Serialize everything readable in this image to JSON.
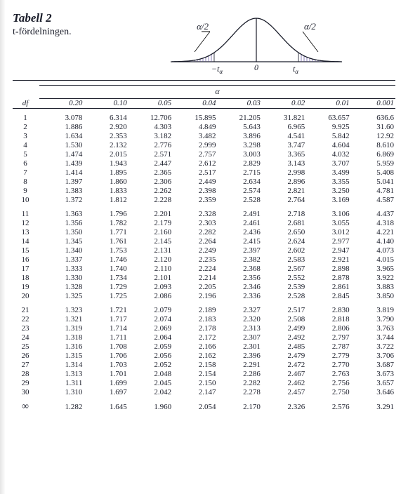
{
  "title": "Tabell 2",
  "subtitle": "t-fördelningen.",
  "diagram": {
    "tail_label": "α/2",
    "axis": {
      "center": "0",
      "left": "−t",
      "right": "t",
      "sub": "α"
    },
    "curve_color": "#1a1d2a",
    "fill_color": "#8a7fb8",
    "bg": "#ffffff"
  },
  "alpha_symbol": "α",
  "df_label": "df",
  "infinity": "∞",
  "alpha_levels": [
    "0.20",
    "0.10",
    "0.05",
    "0.04",
    "0.03",
    "0.02",
    "0.01",
    "0.001"
  ],
  "groups": [
    {
      "rows": [
        {
          "df": "1",
          "v": [
            "3.078",
            "6.314",
            "12.706",
            "15.895",
            "21.205",
            "31.821",
            "63.657",
            "636.6"
          ]
        },
        {
          "df": "2",
          "v": [
            "1.886",
            "2.920",
            "4.303",
            "4.849",
            "5.643",
            "6.965",
            "9.925",
            "31.60"
          ]
        },
        {
          "df": "3",
          "v": [
            "1.634",
            "2.353",
            "3.182",
            "3.482",
            "3.896",
            "4.541",
            "5.842",
            "12.92"
          ]
        },
        {
          "df": "4",
          "v": [
            "1.530",
            "2.132",
            "2.776",
            "2.999",
            "3.298",
            "3.747",
            "4.604",
            "8.610"
          ]
        },
        {
          "df": "5",
          "v": [
            "1.474",
            "2.015",
            "2.571",
            "2.757",
            "3.003",
            "3.365",
            "4.032",
            "6.869"
          ]
        },
        {
          "df": "6",
          "v": [
            "1.439",
            "1.943",
            "2.447",
            "2.612",
            "2.829",
            "3.143",
            "3.707",
            "5.959"
          ]
        },
        {
          "df": "7",
          "v": [
            "1.414",
            "1.895",
            "2.365",
            "2.517",
            "2.715",
            "2.998",
            "3.499",
            "5.408"
          ]
        },
        {
          "df": "8",
          "v": [
            "1.397",
            "1.860",
            "2.306",
            "2.449",
            "2.634",
            "2.896",
            "3.355",
            "5.041"
          ]
        },
        {
          "df": "9",
          "v": [
            "1.383",
            "1.833",
            "2.262",
            "2.398",
            "2.574",
            "2.821",
            "3.250",
            "4.781"
          ]
        },
        {
          "df": "10",
          "v": [
            "1.372",
            "1.812",
            "2.228",
            "2.359",
            "2.528",
            "2.764",
            "3.169",
            "4.587"
          ]
        }
      ]
    },
    {
      "rows": [
        {
          "df": "11",
          "v": [
            "1.363",
            "1.796",
            "2.201",
            "2.328",
            "2.491",
            "2.718",
            "3.106",
            "4.437"
          ]
        },
        {
          "df": "12",
          "v": [
            "1.356",
            "1.782",
            "2.179",
            "2.303",
            "2.461",
            "2.681",
            "3.055",
            "4.318"
          ]
        },
        {
          "df": "13",
          "v": [
            "1.350",
            "1.771",
            "2.160",
            "2.282",
            "2.436",
            "2.650",
            "3.012",
            "4.221"
          ]
        },
        {
          "df": "14",
          "v": [
            "1.345",
            "1.761",
            "2.145",
            "2.264",
            "2.415",
            "2.624",
            "2.977",
            "4.140"
          ]
        },
        {
          "df": "15",
          "v": [
            "1.340",
            "1.753",
            "2.131",
            "2.249",
            "2.397",
            "2.602",
            "2.947",
            "4.073"
          ]
        },
        {
          "df": "16",
          "v": [
            "1.337",
            "1.746",
            "2.120",
            "2.235",
            "2.382",
            "2.583",
            "2.921",
            "4.015"
          ]
        },
        {
          "df": "17",
          "v": [
            "1.333",
            "1.740",
            "2.110",
            "2.224",
            "2.368",
            "2.567",
            "2.898",
            "3.965"
          ]
        },
        {
          "df": "18",
          "v": [
            "1.330",
            "1.734",
            "2.101",
            "2.214",
            "2.356",
            "2.552",
            "2.878",
            "3.922"
          ]
        },
        {
          "df": "19",
          "v": [
            "1.328",
            "1.729",
            "2.093",
            "2.205",
            "2.346",
            "2.539",
            "2.861",
            "3.883"
          ]
        },
        {
          "df": "20",
          "v": [
            "1.325",
            "1.725",
            "2.086",
            "2.196",
            "2.336",
            "2.528",
            "2.845",
            "3.850"
          ]
        }
      ]
    },
    {
      "rows": [
        {
          "df": "21",
          "v": [
            "1.323",
            "1.721",
            "2.079",
            "2.189",
            "2.327",
            "2.517",
            "2.830",
            "3.819"
          ]
        },
        {
          "df": "22",
          "v": [
            "1.321",
            "1.717",
            "2.074",
            "2.183",
            "2.320",
            "2.508",
            "2.818",
            "3.790"
          ]
        },
        {
          "df": "23",
          "v": [
            "1.319",
            "1.714",
            "2.069",
            "2.178",
            "2.313",
            "2.499",
            "2.806",
            "3.763"
          ]
        },
        {
          "df": "24",
          "v": [
            "1.318",
            "1.711",
            "2.064",
            "2.172",
            "2.307",
            "2.492",
            "2.797",
            "3.744"
          ]
        },
        {
          "df": "25",
          "v": [
            "1.316",
            "1.708",
            "2.059",
            "2.166",
            "2.301",
            "2.485",
            "2.787",
            "3.722"
          ]
        },
        {
          "df": "26",
          "v": [
            "1.315",
            "1.706",
            "2.056",
            "2.162",
            "2.396",
            "2.479",
            "2.779",
            "3.706"
          ]
        },
        {
          "df": "27",
          "v": [
            "1.314",
            "1.703",
            "2.052",
            "2.158",
            "2.291",
            "2.472",
            "2.770",
            "3.687"
          ]
        },
        {
          "df": "28",
          "v": [
            "1.313",
            "1.701",
            "2.048",
            "2.154",
            "2.286",
            "2.467",
            "2.763",
            "3.673"
          ]
        },
        {
          "df": "29",
          "v": [
            "1.311",
            "1.699",
            "2.045",
            "2.150",
            "2.282",
            "2.462",
            "2.756",
            "3.657"
          ]
        },
        {
          "df": "30",
          "v": [
            "1.310",
            "1.697",
            "2.042",
            "2.147",
            "2.278",
            "2.457",
            "2.750",
            "3.646"
          ]
        }
      ]
    },
    {
      "rows": [
        {
          "df": "INF",
          "v": [
            "1.282",
            "1.645",
            "1.960",
            "2.054",
            "2.170",
            "2.326",
            "2.576",
            "3.291"
          ]
        }
      ]
    }
  ]
}
